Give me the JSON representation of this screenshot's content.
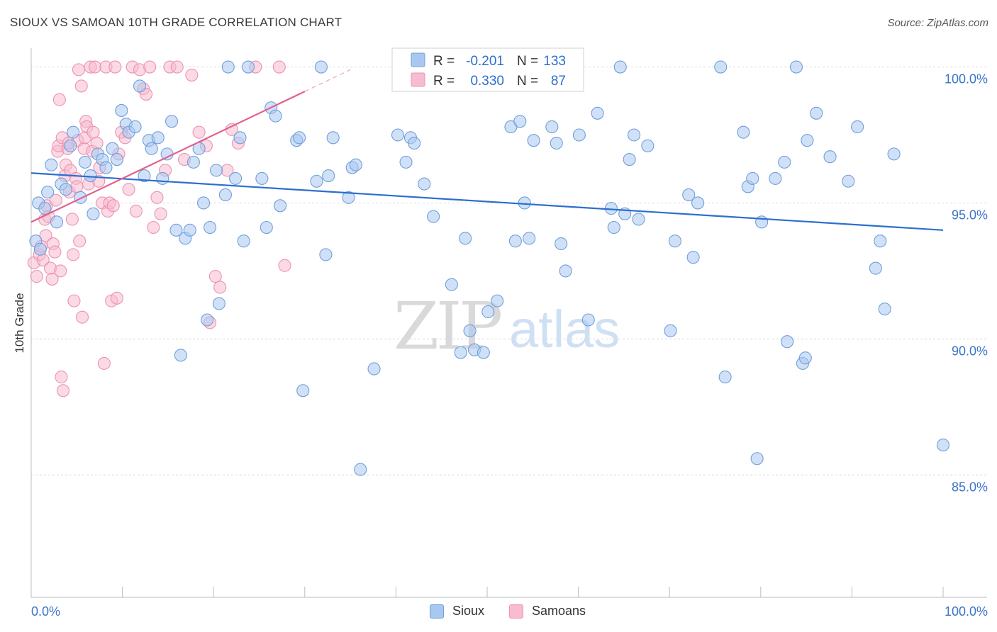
{
  "header": {
    "title": "SIOUX VS SAMOAN 10TH GRADE CORRELATION CHART",
    "source": "Source: ZipAtlas.com"
  },
  "watermark": {
    "part1": "ZIP",
    "part2": "atlas"
  },
  "legend_top": {
    "rows": [
      {
        "r_label": "R =",
        "r_value": "-0.201",
        "n_label": "N =",
        "n_value": "133"
      },
      {
        "r_label": "R =",
        "r_value": "0.330",
        "n_label": "N =",
        "n_value": "87"
      }
    ]
  },
  "legend_bottom": {
    "items": [
      "Sioux",
      "Samoans"
    ]
  },
  "chart_data": {
    "type": "scatter",
    "title": "SIOUX VS SAMOAN 10TH GRADE CORRELATION CHART",
    "xlabel": "",
    "ylabel": "10th Grade",
    "xlim": [
      0,
      100
    ],
    "ylim": [
      80.5,
      100.9
    ],
    "x_tick_labels": [
      "0.0%",
      "100.0%"
    ],
    "y_ticks": [
      100,
      95,
      90,
      85
    ],
    "y_tick_labels": [
      "100.0%",
      "95.0%",
      "90.0%",
      "85.0%"
    ],
    "grid": true,
    "colors": {
      "sioux_fill": "#a9c8f0",
      "sioux_stroke": "#6f9fdc",
      "sioux_line": "#2b6fcf",
      "samoan_fill": "#f7bcd0",
      "samoan_stroke": "#eb93b1",
      "samoan_line": "#e2608c",
      "axis_label": "#3d74c8",
      "grid": "#d9d9d9"
    },
    "series": [
      {
        "name": "Sioux",
        "r": -0.201,
        "n": 133,
        "trend": {
          "x0": 0,
          "y0": 96.1,
          "x1": 100,
          "y1": 94.0
        },
        "points": [
          [
            0.5,
            93.6
          ],
          [
            0.8,
            95.0
          ],
          [
            1.0,
            93.3
          ],
          [
            1.5,
            94.8
          ],
          [
            1.8,
            95.4
          ],
          [
            2.2,
            96.4
          ],
          [
            2.8,
            94.3
          ],
          [
            3.3,
            95.7
          ],
          [
            3.8,
            95.5
          ],
          [
            4.3,
            97.1
          ],
          [
            4.6,
            97.6
          ],
          [
            5.4,
            95.2
          ],
          [
            5.9,
            96.5
          ],
          [
            6.5,
            96.0
          ],
          [
            6.8,
            94.6
          ],
          [
            7.3,
            96.8
          ],
          [
            7.8,
            96.6
          ],
          [
            8.2,
            96.3
          ],
          [
            8.9,
            97.0
          ],
          [
            9.4,
            96.6
          ],
          [
            9.9,
            98.4
          ],
          [
            10.4,
            97.9
          ],
          [
            10.7,
            97.6
          ],
          [
            11.4,
            97.8
          ],
          [
            11.9,
            99.3
          ],
          [
            12.4,
            96.0
          ],
          [
            12.9,
            97.3
          ],
          [
            13.2,
            97.0
          ],
          [
            13.9,
            97.4
          ],
          [
            14.4,
            95.9
          ],
          [
            14.9,
            96.8
          ],
          [
            15.4,
            98.0
          ],
          [
            15.9,
            94.0
          ],
          [
            16.4,
            89.4
          ],
          [
            16.9,
            93.7
          ],
          [
            17.4,
            94.0
          ],
          [
            17.8,
            96.5
          ],
          [
            18.4,
            97.0
          ],
          [
            18.9,
            95.0
          ],
          [
            19.3,
            90.7
          ],
          [
            19.6,
            94.1
          ],
          [
            20.3,
            96.2
          ],
          [
            20.6,
            91.3
          ],
          [
            21.3,
            95.3
          ],
          [
            21.6,
            100.0
          ],
          [
            22.4,
            95.9
          ],
          [
            22.9,
            97.4
          ],
          [
            23.3,
            93.6
          ],
          [
            23.8,
            100.0
          ],
          [
            25.3,
            95.9
          ],
          [
            25.8,
            94.1
          ],
          [
            26.3,
            98.5
          ],
          [
            26.8,
            98.2
          ],
          [
            27.3,
            94.9
          ],
          [
            29.1,
            97.3
          ],
          [
            29.4,
            97.4
          ],
          [
            29.8,
            88.1
          ],
          [
            31.3,
            95.8
          ],
          [
            31.8,
            100.0
          ],
          [
            32.3,
            93.1
          ],
          [
            32.6,
            96.0
          ],
          [
            33.1,
            97.4
          ],
          [
            34.8,
            95.2
          ],
          [
            35.2,
            96.3
          ],
          [
            35.6,
            96.4
          ],
          [
            36.1,
            85.2
          ],
          [
            37.6,
            88.9
          ],
          [
            40.2,
            97.5
          ],
          [
            41.1,
            96.5
          ],
          [
            41.6,
            97.4
          ],
          [
            42.0,
            97.2
          ],
          [
            43.1,
            95.7
          ],
          [
            44.1,
            94.5
          ],
          [
            45.1,
            100.0
          ],
          [
            45.6,
            100.0
          ],
          [
            46.1,
            92.0
          ],
          [
            47.1,
            89.5
          ],
          [
            47.6,
            93.7
          ],
          [
            48.1,
            90.3
          ],
          [
            48.6,
            89.6
          ],
          [
            49.6,
            89.5
          ],
          [
            50.1,
            91.0
          ],
          [
            51.1,
            91.4
          ],
          [
            52.6,
            97.8
          ],
          [
            53.1,
            93.6
          ],
          [
            53.6,
            98.0
          ],
          [
            54.1,
            95.0
          ],
          [
            54.6,
            93.7
          ],
          [
            55.1,
            97.3
          ],
          [
            57.1,
            97.8
          ],
          [
            57.6,
            97.2
          ],
          [
            58.1,
            93.5
          ],
          [
            58.6,
            92.5
          ],
          [
            59.6,
            100.0
          ],
          [
            60.1,
            97.5
          ],
          [
            61.1,
            90.7
          ],
          [
            62.1,
            98.3
          ],
          [
            63.6,
            94.8
          ],
          [
            63.9,
            94.1
          ],
          [
            64.6,
            100.0
          ],
          [
            65.1,
            94.6
          ],
          [
            65.6,
            96.6
          ],
          [
            66.1,
            97.5
          ],
          [
            66.6,
            94.4
          ],
          [
            67.6,
            97.1
          ],
          [
            70.1,
            90.3
          ],
          [
            70.6,
            93.6
          ],
          [
            72.1,
            95.3
          ],
          [
            72.6,
            93.0
          ],
          [
            73.1,
            95.0
          ],
          [
            75.6,
            100.0
          ],
          [
            76.1,
            88.6
          ],
          [
            78.1,
            97.6
          ],
          [
            78.6,
            95.6
          ],
          [
            79.1,
            95.9
          ],
          [
            79.6,
            85.6
          ],
          [
            80.1,
            94.3
          ],
          [
            81.6,
            95.9
          ],
          [
            82.6,
            96.5
          ],
          [
            82.9,
            89.9
          ],
          [
            83.9,
            100.0
          ],
          [
            84.6,
            89.1
          ],
          [
            84.9,
            89.3
          ],
          [
            85.1,
            97.3
          ],
          [
            86.1,
            98.3
          ],
          [
            87.6,
            96.7
          ],
          [
            89.6,
            95.8
          ],
          [
            90.6,
            97.8
          ],
          [
            92.6,
            92.6
          ],
          [
            93.1,
            93.6
          ],
          [
            93.6,
            91.1
          ],
          [
            94.6,
            96.8
          ],
          [
            100.0,
            86.1
          ]
        ]
      },
      {
        "name": "Samoans",
        "r": 0.33,
        "n": 87,
        "trend": {
          "x0": 0,
          "y0": 94.3,
          "x1": 30,
          "y1": 99.1
        },
        "points": [
          [
            0.3,
            92.8
          ],
          [
            0.6,
            92.3
          ],
          [
            0.9,
            93.1
          ],
          [
            1.1,
            93.4
          ],
          [
            1.3,
            92.9
          ],
          [
            1.5,
            94.4
          ],
          [
            1.6,
            93.8
          ],
          [
            1.7,
            94.9
          ],
          [
            1.9,
            94.5
          ],
          [
            2.1,
            92.6
          ],
          [
            2.3,
            92.2
          ],
          [
            2.4,
            93.5
          ],
          [
            2.6,
            93.2
          ],
          [
            2.7,
            95.1
          ],
          [
            2.9,
            96.9
          ],
          [
            3.0,
            97.1
          ],
          [
            3.1,
            98.8
          ],
          [
            3.2,
            92.5
          ],
          [
            3.3,
            88.6
          ],
          [
            3.4,
            97.4
          ],
          [
            3.5,
            88.1
          ],
          [
            3.7,
            96.0
          ],
          [
            3.8,
            96.4
          ],
          [
            4.0,
            97.0
          ],
          [
            4.1,
            97.2
          ],
          [
            4.2,
            95.4
          ],
          [
            4.3,
            96.2
          ],
          [
            4.5,
            94.4
          ],
          [
            4.6,
            93.1
          ],
          [
            4.7,
            91.4
          ],
          [
            4.9,
            95.9
          ],
          [
            5.0,
            95.6
          ],
          [
            5.1,
            97.3
          ],
          [
            5.2,
            99.9
          ],
          [
            5.3,
            93.6
          ],
          [
            5.5,
            99.3
          ],
          [
            5.6,
            90.8
          ],
          [
            5.8,
            97.0
          ],
          [
            5.9,
            97.4
          ],
          [
            6.0,
            98.0
          ],
          [
            6.1,
            97.8
          ],
          [
            6.3,
            95.7
          ],
          [
            6.5,
            100.0
          ],
          [
            6.7,
            96.9
          ],
          [
            6.8,
            97.6
          ],
          [
            7.0,
            100.0
          ],
          [
            7.2,
            97.2
          ],
          [
            7.4,
            95.8
          ],
          [
            7.5,
            96.3
          ],
          [
            7.8,
            95.0
          ],
          [
            8.0,
            89.1
          ],
          [
            8.2,
            100.0
          ],
          [
            8.4,
            94.7
          ],
          [
            8.6,
            95.0
          ],
          [
            8.8,
            91.4
          ],
          [
            9.0,
            94.9
          ],
          [
            9.2,
            100.0
          ],
          [
            9.4,
            91.5
          ],
          [
            9.6,
            96.8
          ],
          [
            9.9,
            97.6
          ],
          [
            10.3,
            97.4
          ],
          [
            10.7,
            95.5
          ],
          [
            11.1,
            100.0
          ],
          [
            11.5,
            94.7
          ],
          [
            11.9,
            99.9
          ],
          [
            12.3,
            99.2
          ],
          [
            12.6,
            99.0
          ],
          [
            13.0,
            100.0
          ],
          [
            13.4,
            94.1
          ],
          [
            13.8,
            95.2
          ],
          [
            14.2,
            94.6
          ],
          [
            14.7,
            96.2
          ],
          [
            15.2,
            100.0
          ],
          [
            16.0,
            100.0
          ],
          [
            16.8,
            96.6
          ],
          [
            17.6,
            99.7
          ],
          [
            18.4,
            97.6
          ],
          [
            19.2,
            97.1
          ],
          [
            19.6,
            90.6
          ],
          [
            20.2,
            92.3
          ],
          [
            20.7,
            91.9
          ],
          [
            21.5,
            96.2
          ],
          [
            22.0,
            97.7
          ],
          [
            22.7,
            97.2
          ],
          [
            24.6,
            100.0
          ],
          [
            27.2,
            100.0
          ],
          [
            27.8,
            92.7
          ]
        ]
      }
    ]
  }
}
